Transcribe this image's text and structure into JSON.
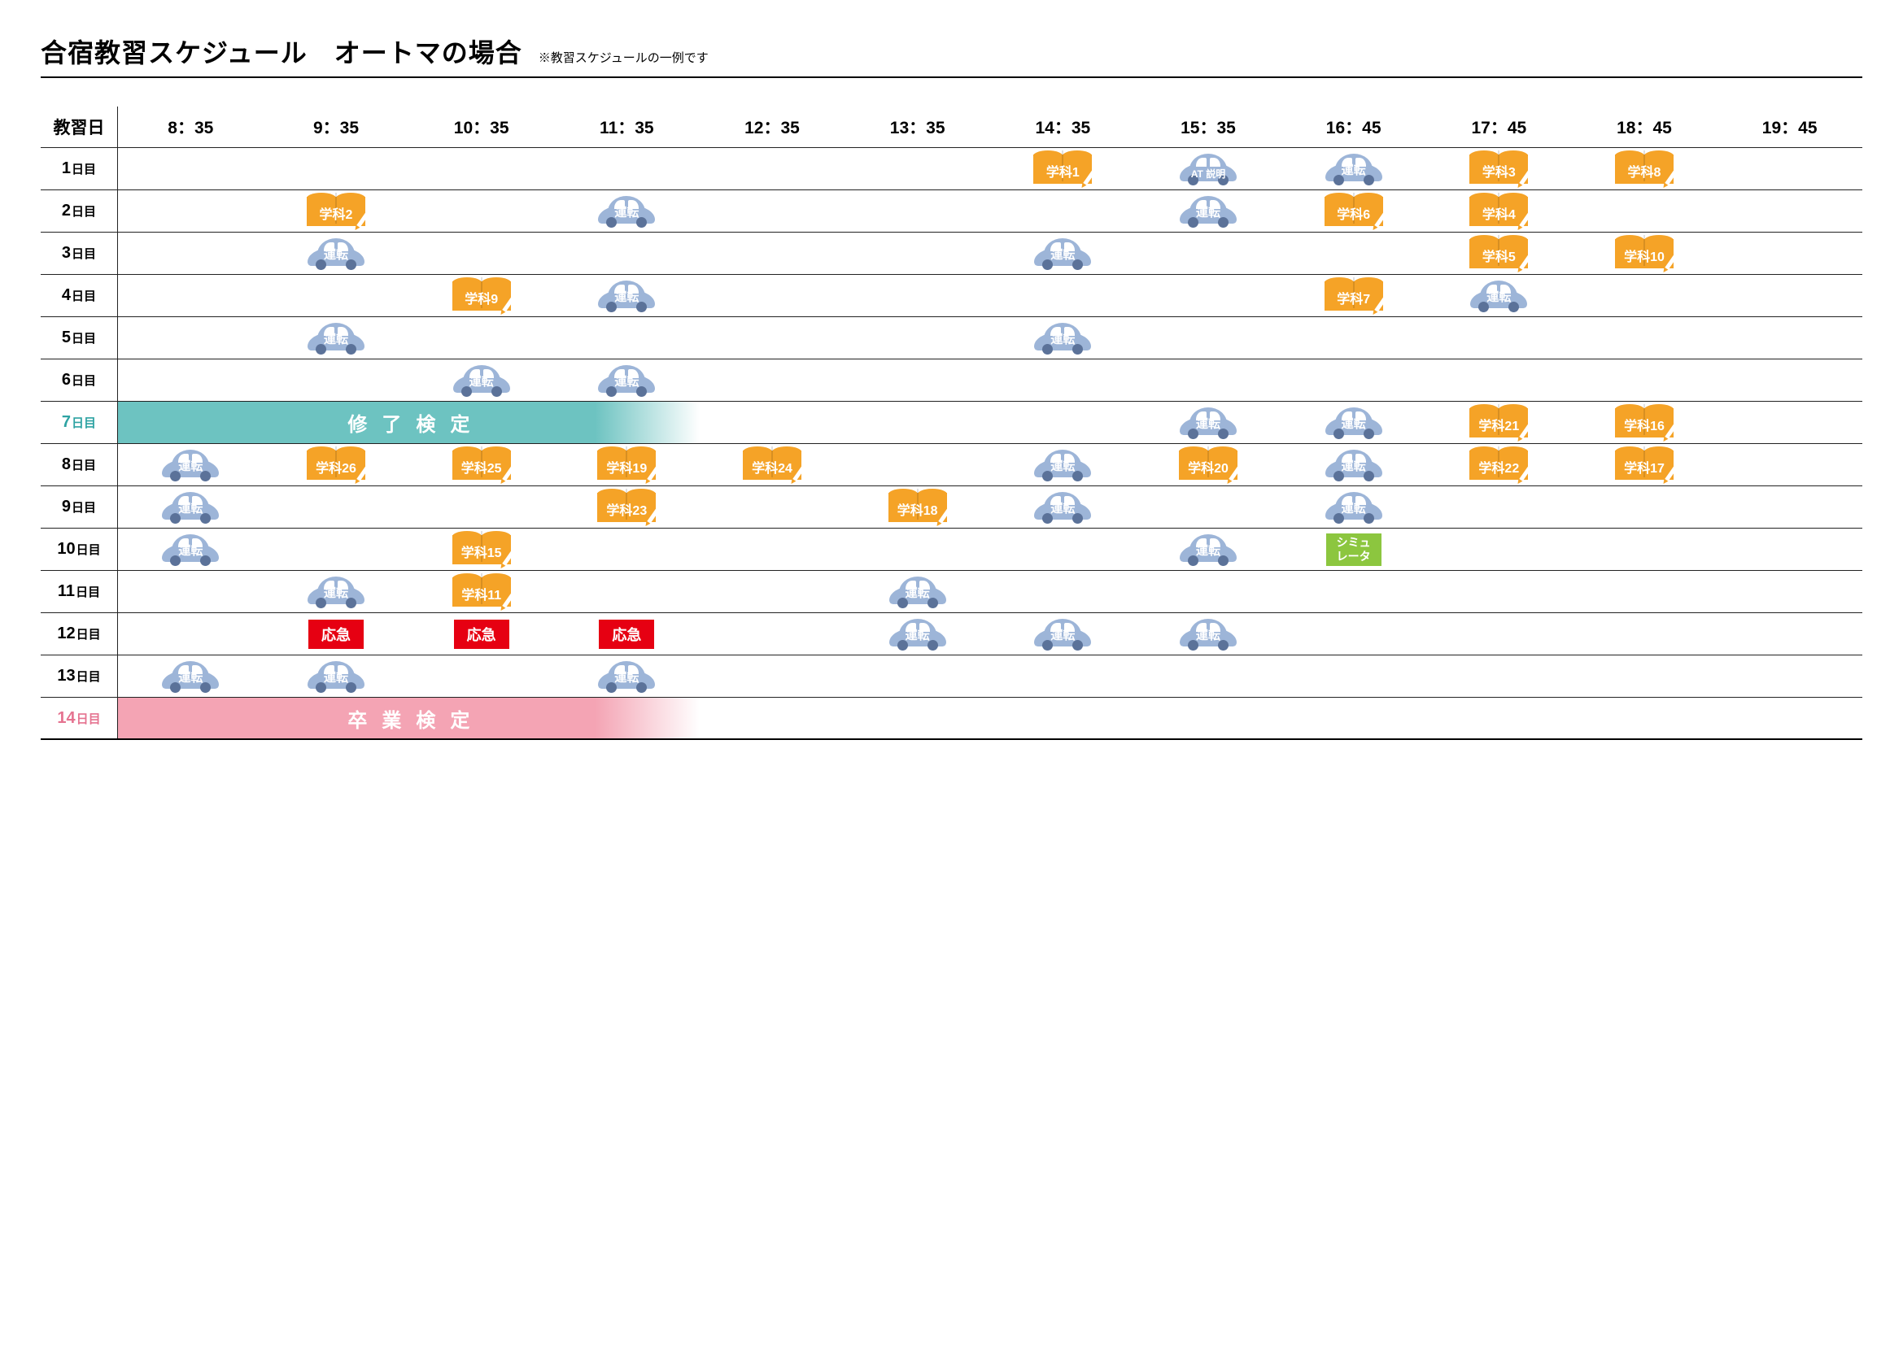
{
  "title": "合宿教習スケジュール　オートマの場合",
  "subtitle": "※教習スケジュールの一例です",
  "header_label": "教習日",
  "time_slots": [
    "8：35",
    "9：35",
    "10：35",
    "11：35",
    "12：35",
    "13：35",
    "14：35",
    "15：35",
    "16：45",
    "17：45",
    "18：45",
    "19：45"
  ],
  "colors": {
    "driving_body": "#9db5d8",
    "driving_wheel": "#5b7299",
    "study_book": "#f5a327",
    "emergency": "#e60012",
    "simulator": "#8cc63f",
    "banner_teal": "#6dc3c1",
    "banner_pink": "#f4a4b4",
    "day7_text": "#2ea3a3",
    "day14_text": "#e57390"
  },
  "labels": {
    "driving": "運転",
    "at_explain": "AT\n説明",
    "emergency": "応急",
    "simulator": "シミュ\nレータ",
    "completion_exam": "修了検定",
    "graduation_exam": "卒業検定"
  },
  "schedule": [
    {
      "day": "1日目",
      "cells": [
        null,
        null,
        null,
        null,
        null,
        null,
        {
          "t": "g",
          "n": "学科1"
        },
        {
          "t": "d",
          "sub": "at"
        },
        {
          "t": "d"
        },
        {
          "t": "g",
          "n": "学科3"
        },
        {
          "t": "g",
          "n": "学科8"
        },
        null
      ]
    },
    {
      "day": "2日目",
      "cells": [
        null,
        {
          "t": "g",
          "n": "学科2"
        },
        null,
        {
          "t": "d"
        },
        null,
        null,
        null,
        {
          "t": "d"
        },
        {
          "t": "g",
          "n": "学科6"
        },
        {
          "t": "g",
          "n": "学科4"
        },
        null,
        null
      ]
    },
    {
      "day": "3日目",
      "cells": [
        null,
        {
          "t": "d"
        },
        null,
        null,
        null,
        null,
        {
          "t": "d"
        },
        null,
        null,
        {
          "t": "g",
          "n": "学科5"
        },
        {
          "t": "g",
          "n": "学科10"
        },
        null
      ]
    },
    {
      "day": "4日目",
      "cells": [
        null,
        null,
        {
          "t": "g",
          "n": "学科9"
        },
        {
          "t": "d"
        },
        null,
        null,
        null,
        null,
        {
          "t": "g",
          "n": "学科7"
        },
        {
          "t": "d"
        },
        null,
        null
      ]
    },
    {
      "day": "5日目",
      "cells": [
        null,
        {
          "t": "d"
        },
        null,
        null,
        null,
        null,
        {
          "t": "d"
        },
        null,
        null,
        null,
        null,
        null
      ]
    },
    {
      "day": "6日目",
      "cells": [
        null,
        null,
        {
          "t": "d"
        },
        {
          "t": "d"
        },
        null,
        null,
        null,
        null,
        null,
        null,
        null,
        null
      ]
    },
    {
      "day": "7日目",
      "cls": "day-7",
      "banner": {
        "t": "teal",
        "key": "completion_exam",
        "span": 4
      },
      "cells": [
        null,
        null,
        null,
        null,
        null,
        null,
        null,
        {
          "t": "d"
        },
        {
          "t": "d"
        },
        {
          "t": "g",
          "n": "学科21"
        },
        {
          "t": "g",
          "n": "学科16"
        },
        null
      ]
    },
    {
      "day": "8日目",
      "cells": [
        {
          "t": "d"
        },
        {
          "t": "g",
          "n": "学科26"
        },
        {
          "t": "g",
          "n": "学科25"
        },
        {
          "t": "g",
          "n": "学科19"
        },
        {
          "t": "g",
          "n": "学科24"
        },
        null,
        {
          "t": "d"
        },
        {
          "t": "g",
          "n": "学科20"
        },
        {
          "t": "d"
        },
        {
          "t": "g",
          "n": "学科22"
        },
        {
          "t": "g",
          "n": "学科17"
        },
        null
      ]
    },
    {
      "day": "9日目",
      "cells": [
        {
          "t": "d"
        },
        null,
        null,
        {
          "t": "g",
          "n": "学科23"
        },
        null,
        {
          "t": "g",
          "n": "学科18"
        },
        {
          "t": "d"
        },
        null,
        {
          "t": "d"
        },
        null,
        null,
        null
      ]
    },
    {
      "day": "10日目",
      "cells": [
        {
          "t": "d"
        },
        null,
        {
          "t": "g",
          "n": "学科15"
        },
        null,
        null,
        null,
        null,
        {
          "t": "d"
        },
        {
          "t": "s"
        },
        null,
        null,
        null
      ]
    },
    {
      "day": "11日目",
      "cells": [
        null,
        {
          "t": "d"
        },
        {
          "t": "g",
          "n": "学科11"
        },
        null,
        null,
        {
          "t": "d"
        },
        null,
        null,
        null,
        null,
        null,
        null
      ]
    },
    {
      "day": "12日目",
      "cells": [
        null,
        {
          "t": "e"
        },
        {
          "t": "e"
        },
        {
          "t": "e"
        },
        null,
        {
          "t": "d"
        },
        {
          "t": "d"
        },
        {
          "t": "d"
        },
        null,
        null,
        null,
        null
      ]
    },
    {
      "day": "13日目",
      "cells": [
        {
          "t": "d"
        },
        {
          "t": "d"
        },
        null,
        {
          "t": "d"
        },
        null,
        null,
        null,
        null,
        null,
        null,
        null,
        null
      ]
    },
    {
      "day": "14日目",
      "cls": "day-14",
      "banner": {
        "t": "pink",
        "key": "graduation_exam",
        "span": 4
      },
      "cells": [
        null,
        null,
        null,
        null,
        null,
        null,
        null,
        null,
        null,
        null,
        null,
        null
      ]
    }
  ]
}
